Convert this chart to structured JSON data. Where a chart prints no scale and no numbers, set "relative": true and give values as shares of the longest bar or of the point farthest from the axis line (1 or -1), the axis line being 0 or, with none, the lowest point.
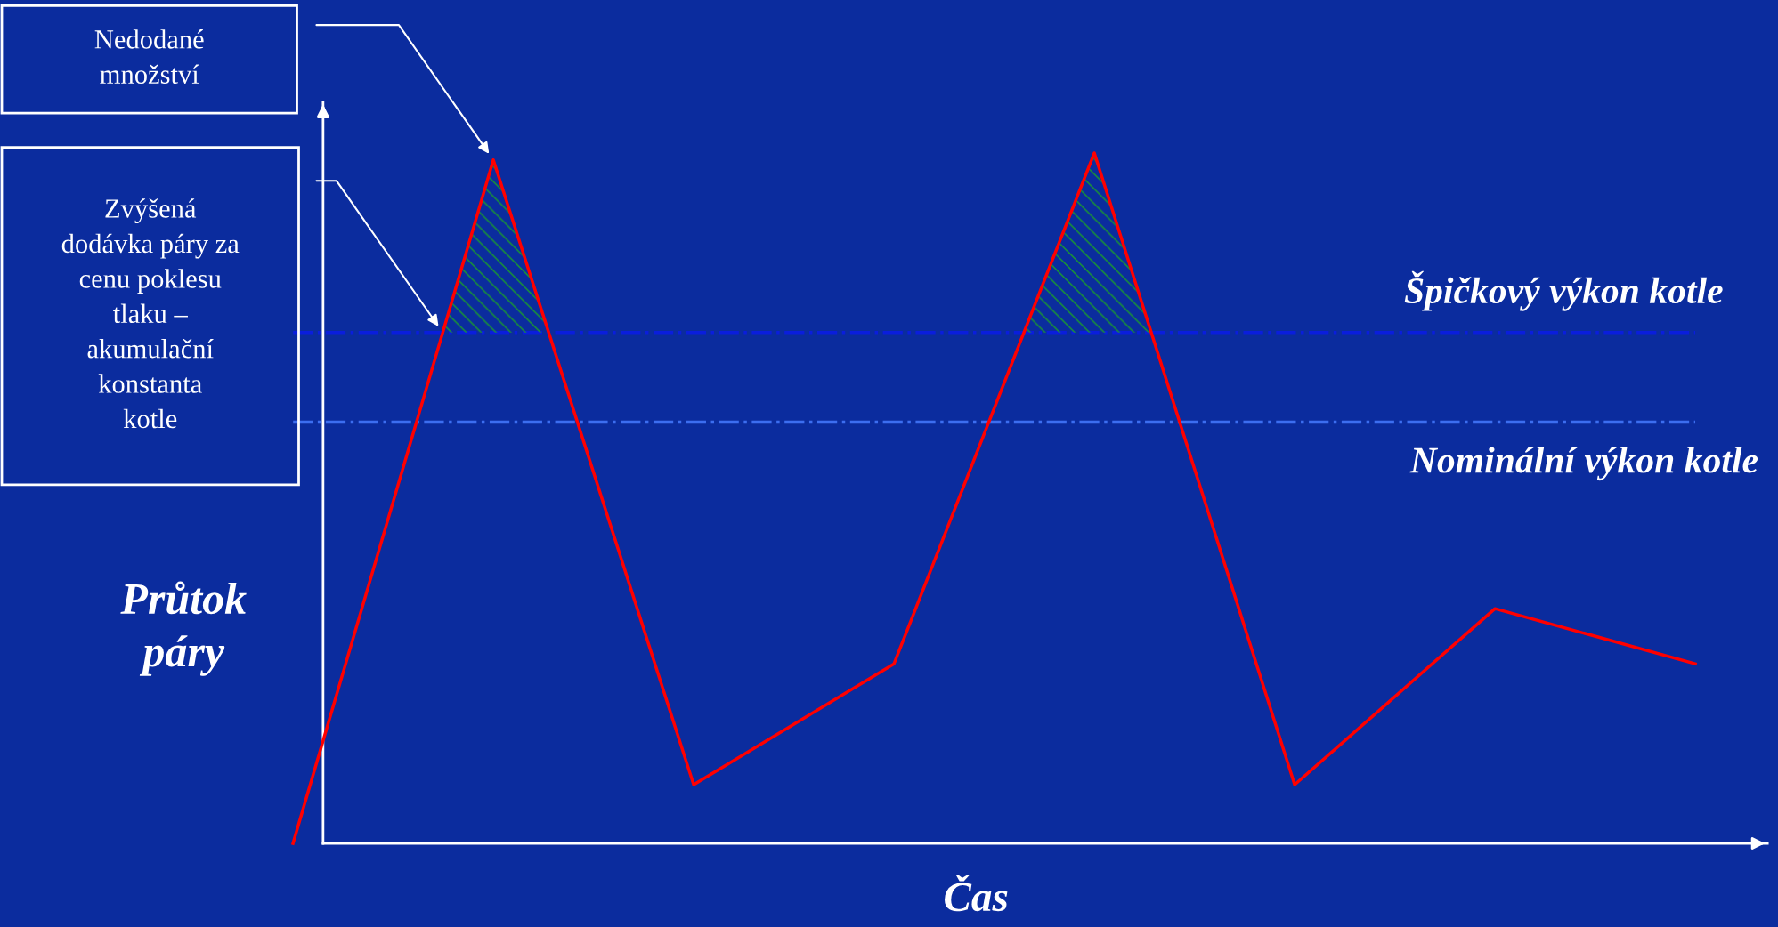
{
  "chart_data": {
    "type": "line",
    "relative": true,
    "xlabel": "Čas",
    "ylabel": "Průtok\npáry",
    "categories": [
      null,
      null,
      null,
      null,
      null,
      null,
      null,
      null
    ],
    "series": [
      {
        "color": "#ff0000",
        "values": [
          0,
          0.99,
          0.085,
          0.26,
          1,
          0.085,
          0.34,
          0.26
        ]
      }
    ],
    "ref_lines": [
      {
        "axis": "y",
        "value": 0.74,
        "label": "Špičkový výkon kotle",
        "color": "#0a1edc",
        "line_style": "dashdot"
      },
      {
        "axis": "y",
        "value": 0.61,
        "label": "Nominální výkon kotle",
        "color": "#3c6ef0",
        "line_style": "dashdot"
      }
    ],
    "annotations": [
      "Nedodané\nmnožství",
      "Zvýšená\ndodávka páry za\ncenu poklesu\ntlaku –\nakumulační\nkonstanta\nkotle"
    ]
  }
}
